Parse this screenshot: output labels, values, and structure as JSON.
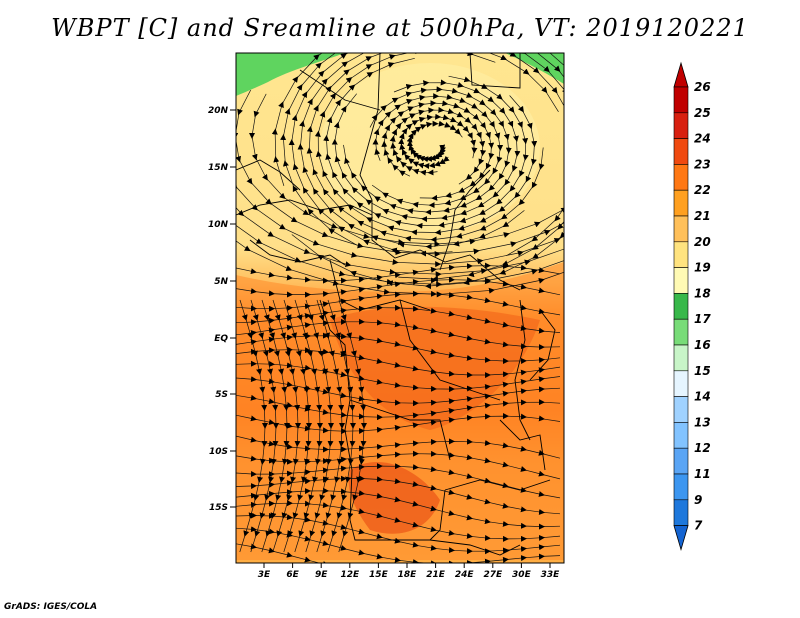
{
  "title": "WBPT [C] and Sreamline at 500hPa, VT: 2019120221",
  "footer": "GrADS: IGES/COLA",
  "map": {
    "lat_labels": [
      "20N",
      "15N",
      "10N",
      "5N",
      "EQ",
      "5S",
      "10S",
      "15S"
    ],
    "lon_labels": [
      "3E",
      "6E",
      "9E",
      "12E",
      "15E",
      "18E",
      "21E",
      "24E",
      "27E",
      "30E",
      "33E"
    ],
    "lat_range": [
      -19.5,
      25
    ],
    "lon_range": [
      0,
      35
    ],
    "cyclone_center": "17N, 23E"
  },
  "colorbar": {
    "labels": [
      "7",
      "9",
      "11",
      "12",
      "13",
      "14",
      "15",
      "16",
      "17",
      "18",
      "19",
      "20",
      "21",
      "22",
      "23",
      "24",
      "25",
      "26"
    ],
    "colors": [
      "#1464d2",
      "#1e78dc",
      "#3c96f0",
      "#5aa5f5",
      "#82c3ff",
      "#a0d2ff",
      "#e6f5ff",
      "#c8f5c8",
      "#78dc78",
      "#38b84a",
      "#fffab4",
      "#ffe37f",
      "#ffc05a",
      "#ffa020",
      "#ff7814",
      "#f04a10",
      "#d82010",
      "#c00000"
    ],
    "low_arrow_color": "#1464d2",
    "high_arrow_color": "#c00000"
  }
}
